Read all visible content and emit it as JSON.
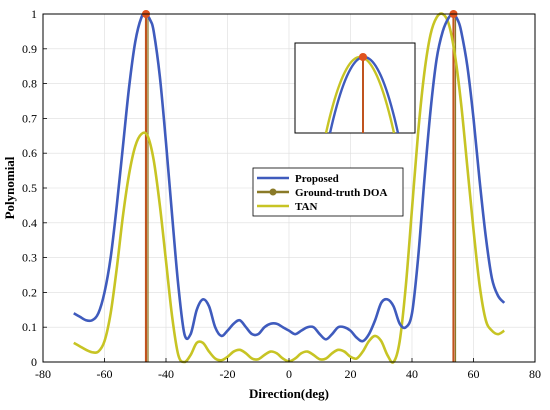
{
  "chart_data": {
    "type": "line",
    "title": "",
    "xlabel": "Direction(deg)",
    "ylabel": "Polynomial",
    "xlim": [
      -80,
      80
    ],
    "ylim": [
      0,
      1
    ],
    "x_ticks": [
      -80,
      -60,
      -40,
      -20,
      0,
      20,
      40,
      60,
      80
    ],
    "y_ticks": [
      0,
      0.1,
      0.2,
      0.3,
      0.4,
      0.5,
      0.6,
      0.7,
      0.8,
      0.9,
      1
    ],
    "x_tick_labels": [
      "-80",
      "-60",
      "-40",
      "-20",
      "0",
      "20",
      "40",
      "60",
      "80"
    ],
    "y_tick_labels": [
      "0",
      "0.1",
      "0.2",
      "0.3",
      "0.4",
      "0.5",
      "0.6",
      "0.7",
      "0.8",
      "0.9",
      "1"
    ],
    "grid": true,
    "legend_position": "center",
    "colors": {
      "proposed": "#3f5bbd",
      "ground_truth": "#8a7a28",
      "tan": "#c7c424",
      "marker": "#e0531e"
    },
    "series": [
      {
        "name": "Proposed",
        "x": [
          -70,
          -68,
          -66,
          -64,
          -62,
          -60,
          -58,
          -56,
          -54,
          -52,
          -50,
          -48,
          -46.5,
          -45,
          -44,
          -42,
          -40,
          -38,
          -36,
          -34,
          -32,
          -30,
          -28,
          -26,
          -24,
          -22,
          -20,
          -18,
          -16,
          -14,
          -12,
          -10,
          -8,
          -6,
          -4,
          -2,
          0,
          2,
          4,
          6,
          8,
          10,
          12,
          14,
          16,
          18,
          20,
          22,
          24,
          26,
          28,
          30,
          32,
          34,
          36,
          38,
          40,
          42,
          44,
          46,
          48,
          50,
          52,
          53.5,
          55,
          56,
          58,
          60,
          62,
          64,
          66,
          68,
          70
        ],
        "y": [
          0.14,
          0.13,
          0.12,
          0.12,
          0.14,
          0.2,
          0.3,
          0.45,
          0.62,
          0.79,
          0.92,
          0.99,
          1.0,
          0.98,
          0.95,
          0.82,
          0.63,
          0.42,
          0.22,
          0.08,
          0.08,
          0.15,
          0.18,
          0.16,
          0.1,
          0.075,
          0.09,
          0.11,
          0.12,
          0.1,
          0.08,
          0.08,
          0.1,
          0.11,
          0.11,
          0.1,
          0.09,
          0.08,
          0.09,
          0.1,
          0.1,
          0.08,
          0.065,
          0.08,
          0.1,
          0.1,
          0.09,
          0.07,
          0.06,
          0.08,
          0.12,
          0.17,
          0.18,
          0.16,
          0.11,
          0.1,
          0.14,
          0.3,
          0.52,
          0.72,
          0.87,
          0.95,
          0.99,
          1.0,
          0.98,
          0.95,
          0.85,
          0.7,
          0.52,
          0.36,
          0.24,
          0.19,
          0.17
        ]
      },
      {
        "name": "TAN",
        "x": [
          -70,
          -68,
          -66,
          -64,
          -62,
          -60,
          -58,
          -56,
          -54,
          -52,
          -50,
          -48,
          -46,
          -44,
          -42,
          -40,
          -38,
          -36,
          -34,
          -32,
          -30,
          -28,
          -26,
          -24,
          -22,
          -20,
          -18,
          -16,
          -14,
          -12,
          -10,
          -8,
          -6,
          -4,
          -2,
          0,
          2,
          4,
          6,
          8,
          10,
          12,
          14,
          16,
          18,
          20,
          22,
          24,
          26,
          28,
          30,
          32,
          34,
          36,
          38,
          40,
          42,
          44,
          46,
          48,
          50,
          52,
          54,
          56,
          58,
          60,
          62,
          64,
          66,
          68,
          70
        ],
        "y": [
          0.055,
          0.045,
          0.035,
          0.028,
          0.03,
          0.06,
          0.14,
          0.27,
          0.42,
          0.54,
          0.62,
          0.655,
          0.65,
          0.58,
          0.45,
          0.29,
          0.13,
          0.02,
          0.0,
          0.02,
          0.055,
          0.055,
          0.03,
          0.01,
          0.005,
          0.015,
          0.03,
          0.035,
          0.025,
          0.01,
          0.008,
          0.02,
          0.03,
          0.025,
          0.01,
          0.002,
          0.01,
          0.025,
          0.03,
          0.02,
          0.008,
          0.01,
          0.025,
          0.035,
          0.03,
          0.015,
          0.01,
          0.03,
          0.06,
          0.075,
          0.06,
          0.02,
          0.0,
          0.06,
          0.22,
          0.44,
          0.66,
          0.83,
          0.94,
          0.99,
          1.0,
          0.97,
          0.88,
          0.74,
          0.56,
          0.38,
          0.22,
          0.12,
          0.09,
          0.08,
          0.09
        ]
      },
      {
        "name": "Ground-truth DOA",
        "x": [
          -46.5,
          53.5
        ],
        "y": [
          1,
          1
        ]
      }
    ],
    "legend": {
      "entries": [
        {
          "label": "Proposed"
        },
        {
          "label": "Ground-truth DOA"
        },
        {
          "label": "TAN"
        }
      ]
    },
    "inset": {
      "description_visible": false
    }
  }
}
